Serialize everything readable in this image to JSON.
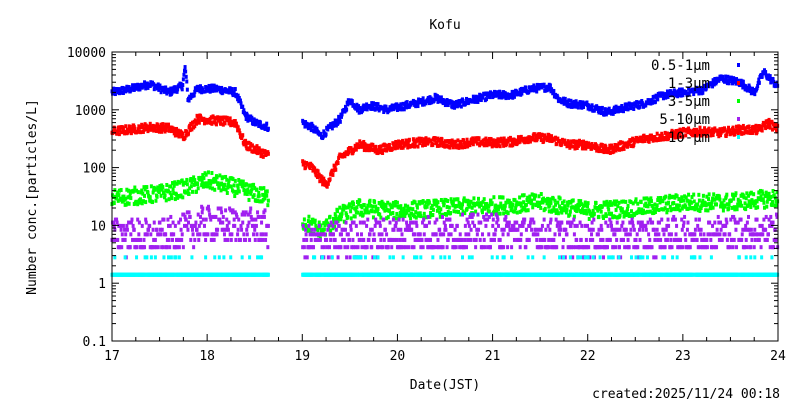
{
  "chart_data": {
    "type": "scatter",
    "title": "Kofu",
    "xlabel": "Date(JST)",
    "ylabel": "Number conc.[particles/L]",
    "footer": "created:2025/11/24 00:18",
    "xlim": [
      17,
      24
    ],
    "ylim": [
      0.1,
      10000
    ],
    "yscale": "log",
    "xticks": [
      17,
      18,
      19,
      20,
      21,
      22,
      23,
      24
    ],
    "xtick_labels": [
      "17",
      "18",
      "19",
      "20",
      "21",
      "22",
      "23",
      "24"
    ],
    "yticks": [
      0.1,
      1,
      10,
      100,
      1000,
      10000
    ],
    "ytick_labels": [
      "0.1",
      "1",
      "10",
      "100",
      "1000",
      "10000"
    ],
    "legend_position": "top-right",
    "gap": [
      18.65,
      19.0
    ],
    "series": [
      {
        "name": "0.5-1μm",
        "color": "#0000ff",
        "noise": 0.06,
        "quantum": 0,
        "anchors": [
          [
            17.0,
            2000
          ],
          [
            17.2,
            2300
          ],
          [
            17.4,
            2800
          ],
          [
            17.6,
            2000
          ],
          [
            17.74,
            2600
          ],
          [
            17.77,
            5500
          ],
          [
            17.8,
            1500
          ],
          [
            17.9,
            2300
          ],
          [
            18.1,
            2300
          ],
          [
            18.3,
            2000
          ],
          [
            18.4,
            800
          ],
          [
            18.5,
            600
          ],
          [
            18.65,
            500
          ],
          [
            19.0,
            600
          ],
          [
            19.1,
            500
          ],
          [
            19.2,
            350
          ],
          [
            19.3,
            500
          ],
          [
            19.4,
            700
          ],
          [
            19.5,
            1500
          ],
          [
            19.6,
            1000
          ],
          [
            19.7,
            1200
          ],
          [
            19.8,
            1100
          ],
          [
            19.9,
            1000
          ],
          [
            20.0,
            1100
          ],
          [
            20.2,
            1300
          ],
          [
            20.4,
            1600
          ],
          [
            20.6,
            1200
          ],
          [
            20.8,
            1500
          ],
          [
            21.0,
            1800
          ],
          [
            21.2,
            1800
          ],
          [
            21.4,
            2300
          ],
          [
            21.6,
            2500
          ],
          [
            21.7,
            1500
          ],
          [
            21.8,
            1300
          ],
          [
            22.0,
            1200
          ],
          [
            22.2,
            900
          ],
          [
            22.4,
            1100
          ],
          [
            22.6,
            1300
          ],
          [
            22.8,
            1800
          ],
          [
            23.0,
            2000
          ],
          [
            23.2,
            2200
          ],
          [
            23.4,
            3500
          ],
          [
            23.6,
            3000
          ],
          [
            23.75,
            2000
          ],
          [
            23.85,
            4500
          ],
          [
            24.0,
            2500
          ]
        ]
      },
      {
        "name": "1-3μm",
        "color": "#ff0000",
        "noise": 0.07,
        "quantum": 0,
        "anchors": [
          [
            17.0,
            420
          ],
          [
            17.4,
            500
          ],
          [
            17.6,
            480
          ],
          [
            17.75,
            350
          ],
          [
            17.9,
            700
          ],
          [
            18.1,
            650
          ],
          [
            18.3,
            600
          ],
          [
            18.4,
            250
          ],
          [
            18.65,
            160
          ],
          [
            19.0,
            120
          ],
          [
            19.1,
            100
          ],
          [
            19.25,
            50
          ],
          [
            19.4,
            150
          ],
          [
            19.6,
            250
          ],
          [
            19.8,
            200
          ],
          [
            20.0,
            250
          ],
          [
            20.2,
            270
          ],
          [
            20.4,
            280
          ],
          [
            20.6,
            250
          ],
          [
            20.8,
            280
          ],
          [
            21.0,
            270
          ],
          [
            21.2,
            280
          ],
          [
            21.4,
            330
          ],
          [
            21.6,
            320
          ],
          [
            21.8,
            250
          ],
          [
            22.0,
            250
          ],
          [
            22.2,
            200
          ],
          [
            22.4,
            250
          ],
          [
            22.6,
            320
          ],
          [
            22.8,
            350
          ],
          [
            23.0,
            400
          ],
          [
            23.2,
            420
          ],
          [
            23.4,
            400
          ],
          [
            23.6,
            450
          ],
          [
            23.8,
            450
          ],
          [
            23.9,
            600
          ],
          [
            24.0,
            450
          ]
        ]
      },
      {
        "name": "3-5μm",
        "color": "#00ff00",
        "noise": 0.15,
        "quantum": 0,
        "anchors": [
          [
            17.0,
            30
          ],
          [
            17.5,
            35
          ],
          [
            17.8,
            45
          ],
          [
            18.0,
            60
          ],
          [
            18.3,
            45
          ],
          [
            18.65,
            30
          ],
          [
            19.0,
            12
          ],
          [
            19.2,
            8
          ],
          [
            19.4,
            15
          ],
          [
            19.6,
            20
          ],
          [
            20.0,
            18
          ],
          [
            20.5,
            20
          ],
          [
            21.0,
            22
          ],
          [
            21.5,
            25
          ],
          [
            22.0,
            18
          ],
          [
            22.5,
            20
          ],
          [
            23.0,
            25
          ],
          [
            23.5,
            25
          ],
          [
            24.0,
            30
          ]
        ]
      },
      {
        "name": "5-10μm",
        "color": "#a020f0",
        "noise": 0.3,
        "quantum": 1.4,
        "anchors": [
          [
            17.0,
            7
          ],
          [
            17.5,
            6
          ],
          [
            18.0,
            11
          ],
          [
            18.65,
            9
          ],
          [
            19.0,
            5
          ],
          [
            20.0,
            7
          ],
          [
            21.0,
            8
          ],
          [
            22.0,
            6
          ],
          [
            23.0,
            7
          ],
          [
            24.0,
            8
          ]
        ]
      },
      {
        "name": "10-μm",
        "color": "#00ffff",
        "noise": 0.12,
        "quantum": 1.4,
        "anchors": [
          [
            17.0,
            1.4
          ],
          [
            18.65,
            1.4
          ],
          [
            19.0,
            1.4
          ],
          [
            24.0,
            1.4
          ]
        ]
      }
    ]
  }
}
